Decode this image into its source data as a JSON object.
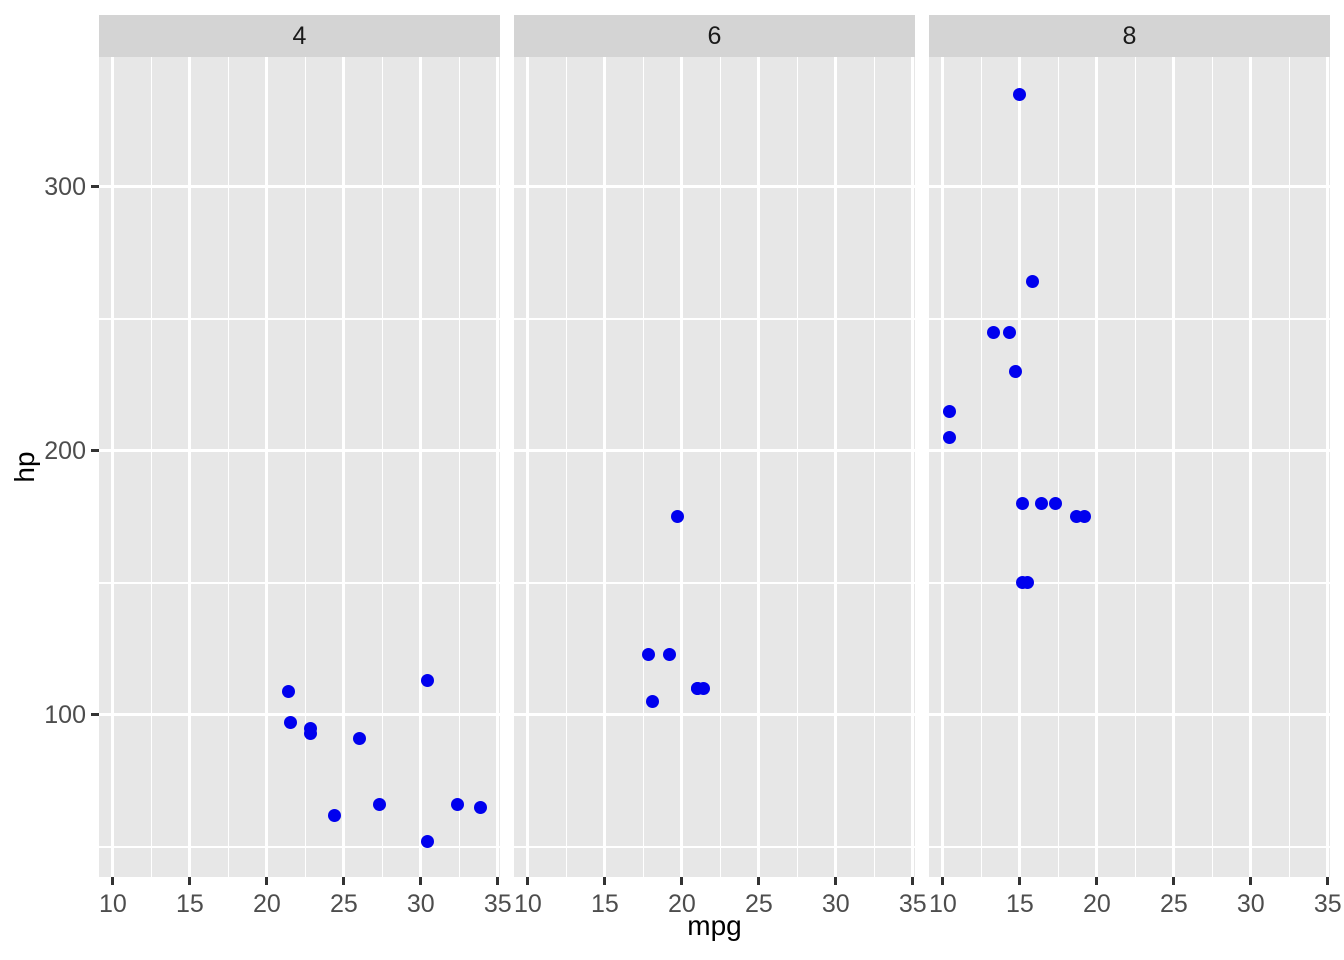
{
  "figure": {
    "background": "#FFFFFF"
  },
  "chart_data": {
    "type": "scatter",
    "title": "",
    "xlabel": "mpg",
    "ylabel": "hp",
    "facet_labels": [
      "4",
      "6",
      "8"
    ],
    "legend": "none",
    "grid": true,
    "x_ticks": [
      10,
      15,
      20,
      25,
      30,
      35
    ],
    "x_minor_ticks": [
      12.5,
      17.5,
      22.5,
      27.5,
      32.5
    ],
    "y_ticks": [
      100,
      200,
      300
    ],
    "y_minor_ticks": [
      50,
      150,
      250,
      350
    ],
    "x_domain": [
      9.1,
      35.14
    ],
    "y_domain": [
      38.6,
      349.2
    ],
    "colors": {
      "point": "#0000EE",
      "panel_bg": "#E7E7E7",
      "strip_bg": "#D4D4D4",
      "grid": "#FFFFFF",
      "tick_mark": "#333333",
      "tick_label": "#4D4D4D",
      "strip_text": "#1A1A1A",
      "axis_title": "#000000"
    },
    "series": [
      {
        "name": "4",
        "points": [
          [
            21.4,
            109
          ],
          [
            21.5,
            97
          ],
          [
            22.8,
            93
          ],
          [
            22.8,
            95
          ],
          [
            24.4,
            62
          ],
          [
            26.0,
            91
          ],
          [
            27.3,
            66
          ],
          [
            30.4,
            52
          ],
          [
            30.4,
            113
          ],
          [
            32.4,
            66
          ],
          [
            33.9,
            65
          ]
        ]
      },
      {
        "name": "6",
        "points": [
          [
            17.8,
            123
          ],
          [
            18.1,
            105
          ],
          [
            19.2,
            123
          ],
          [
            19.7,
            175
          ],
          [
            21.0,
            110
          ],
          [
            21.0,
            110
          ],
          [
            21.4,
            110
          ]
        ]
      },
      {
        "name": "8",
        "points": [
          [
            10.4,
            205
          ],
          [
            10.4,
            215
          ],
          [
            13.3,
            245
          ],
          [
            14.3,
            245
          ],
          [
            14.7,
            230
          ],
          [
            15.0,
            335
          ],
          [
            15.2,
            150
          ],
          [
            15.2,
            180
          ],
          [
            15.5,
            150
          ],
          [
            15.8,
            264
          ],
          [
            16.4,
            180
          ],
          [
            17.3,
            180
          ],
          [
            18.7,
            175
          ],
          [
            19.2,
            175
          ]
        ]
      }
    ]
  }
}
